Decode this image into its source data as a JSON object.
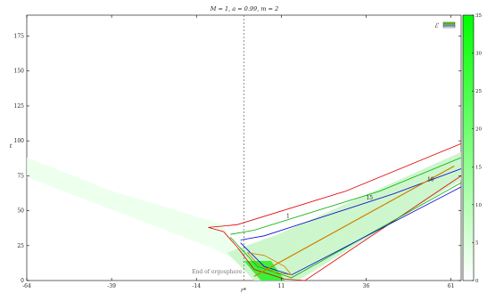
{
  "chart_data": {
    "type": "heatmap",
    "title": "M = 1, a = 0.99, m = 2",
    "xlabel": "r*",
    "ylabel": "t",
    "x_ticks": [
      -64,
      -39,
      -14,
      11,
      36,
      61
    ],
    "y_ticks": [
      0,
      25,
      50,
      75,
      100,
      125,
      150,
      175
    ],
    "xlim": [
      -64,
      64
    ],
    "ylim": [
      0,
      190
    ],
    "legend": {
      "label": "ℰ",
      "placement": "top-right"
    },
    "colorbar": {
      "ticks": [
        0,
        5,
        10,
        15,
        20,
        25,
        30,
        35
      ],
      "range": [
        0,
        35
      ],
      "color_min": "#ffffff",
      "color_max": "#00ff00"
    },
    "ergosphere": {
      "x": 0,
      "label": "End of ergosphere",
      "label_y": 5
    },
    "contour_colors": {
      "outer": "#e00000",
      "mid": "#00b000",
      "inner": "#0000d0",
      "core": "#d08000"
    },
    "contour_labels": [
      {
        "text": "1",
        "x": 13,
        "y": 45
      },
      {
        "text": "10",
        "x": 55,
        "y": 71
      },
      {
        "text": "15",
        "x": 37,
        "y": 58
      }
    ],
    "ridge": [
      {
        "x": 3,
        "y": 3
      },
      {
        "x": 62,
        "y": 82
      }
    ]
  }
}
